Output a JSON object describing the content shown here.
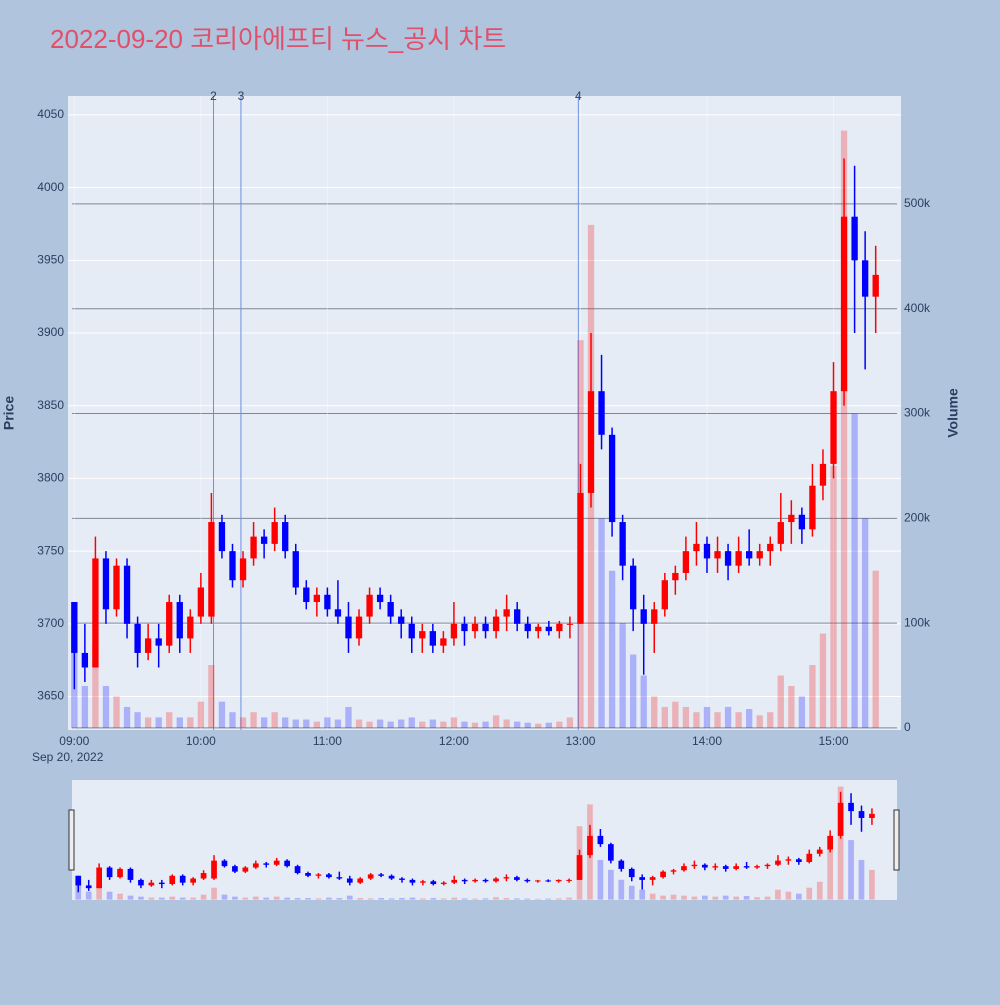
{
  "chart_data": {
    "type": "candlestick",
    "title": "2022-09-20 코리아에프티 뉴스_공시 차트",
    "ylabel": "Price",
    "y2label": "Volume",
    "x_date_label": "Sep 20, 2022",
    "x": [
      "09:00",
      "09:05",
      "09:10",
      "09:15",
      "09:20",
      "09:25",
      "09:30",
      "09:35",
      "09:40",
      "09:45",
      "09:50",
      "09:55",
      "10:00",
      "10:05",
      "10:10",
      "10:15",
      "10:20",
      "10:25",
      "10:30",
      "10:35",
      "10:40",
      "10:45",
      "10:50",
      "10:55",
      "11:00",
      "11:05",
      "11:10",
      "11:15",
      "11:20",
      "11:25",
      "11:30",
      "11:35",
      "11:40",
      "11:45",
      "11:50",
      "11:55",
      "12:00",
      "12:05",
      "12:10",
      "12:15",
      "12:20",
      "12:25",
      "12:30",
      "12:35",
      "12:40",
      "12:45",
      "12:50",
      "12:55",
      "13:00",
      "13:05",
      "13:10",
      "13:15",
      "13:20",
      "13:25",
      "13:30",
      "13:35",
      "13:40",
      "13:45",
      "13:50",
      "13:55",
      "14:00",
      "14:05",
      "14:10",
      "14:15",
      "14:20",
      "14:25",
      "14:30",
      "14:35",
      "14:40",
      "14:45",
      "14:50",
      "14:55",
      "15:00",
      "15:05",
      "15:10",
      "15:15",
      "15:20"
    ],
    "open": [
      3715,
      3680,
      3670,
      3745,
      3710,
      3740,
      3700,
      3680,
      3690,
      3685,
      3715,
      3690,
      3705,
      3705,
      3770,
      3750,
      3730,
      3745,
      3760,
      3755,
      3770,
      3750,
      3725,
      3715,
      3720,
      3710,
      3705,
      3690,
      3705,
      3720,
      3715,
      3705,
      3700,
      3690,
      3695,
      3685,
      3690,
      3700,
      3695,
      3700,
      3695,
      3705,
      3710,
      3700,
      3695,
      3698,
      3695,
      3700,
      3700,
      3790,
      3860,
      3830,
      3770,
      3740,
      3710,
      3700,
      3710,
      3730,
      3735,
      3750,
      3755,
      3745,
      3750,
      3740,
      3750,
      3745,
      3750,
      3755,
      3770,
      3775,
      3765,
      3795,
      3810,
      3860,
      3980,
      3950,
      3925
    ],
    "high": [
      3715,
      3700,
      3760,
      3750,
      3745,
      3745,
      3705,
      3700,
      3700,
      3720,
      3720,
      3710,
      3735,
      3790,
      3775,
      3755,
      3750,
      3770,
      3765,
      3780,
      3775,
      3755,
      3730,
      3725,
      3725,
      3730,
      3715,
      3710,
      3725,
      3725,
      3720,
      3710,
      3705,
      3700,
      3700,
      3695,
      3715,
      3705,
      3705,
      3705,
      3710,
      3720,
      3715,
      3705,
      3700,
      3702,
      3702,
      3705,
      3810,
      3900,
      3885,
      3835,
      3775,
      3745,
      3720,
      3715,
      3735,
      3740,
      3760,
      3770,
      3760,
      3760,
      3755,
      3760,
      3765,
      3755,
      3760,
      3790,
      3785,
      3780,
      3810,
      3820,
      3880,
      4020,
      4015,
      3970,
      3960
    ],
    "low": [
      3655,
      3660,
      3670,
      3700,
      3705,
      3690,
      3670,
      3675,
      3670,
      3680,
      3680,
      3680,
      3700,
      3700,
      3745,
      3725,
      3725,
      3740,
      3745,
      3750,
      3745,
      3720,
      3710,
      3705,
      3705,
      3700,
      3680,
      3685,
      3700,
      3710,
      3700,
      3690,
      3680,
      3680,
      3680,
      3680,
      3685,
      3685,
      3690,
      3690,
      3690,
      3695,
      3695,
      3690,
      3690,
      3692,
      3690,
      3690,
      3700,
      3780,
      3820,
      3760,
      3730,
      3695,
      3665,
      3680,
      3705,
      3720,
      3730,
      3740,
      3735,
      3735,
      3730,
      3735,
      3740,
      3740,
      3740,
      3750,
      3755,
      3755,
      3760,
      3785,
      3800,
      3850,
      3900,
      3875,
      3900
    ],
    "close": [
      3680,
      3670,
      3745,
      3710,
      3740,
      3700,
      3680,
      3690,
      3685,
      3715,
      3690,
      3705,
      3725,
      3770,
      3750,
      3730,
      3745,
      3760,
      3755,
      3770,
      3750,
      3725,
      3715,
      3720,
      3710,
      3705,
      3690,
      3705,
      3720,
      3715,
      3705,
      3700,
      3690,
      3695,
      3685,
      3690,
      3700,
      3695,
      3700,
      3695,
      3705,
      3710,
      3700,
      3695,
      3698,
      3695,
      3700,
      3700,
      3790,
      3860,
      3830,
      3770,
      3740,
      3710,
      3700,
      3710,
      3730,
      3735,
      3750,
      3755,
      3745,
      3750,
      3740,
      3750,
      3745,
      3750,
      3755,
      3770,
      3775,
      3765,
      3795,
      3810,
      3860,
      3980,
      3950,
      3925,
      3940
    ],
    "volume": [
      90000,
      40000,
      80000,
      40000,
      30000,
      20000,
      15000,
      10000,
      10000,
      15000,
      10000,
      10000,
      25000,
      60000,
      25000,
      15000,
      10000,
      15000,
      10000,
      15000,
      10000,
      8000,
      8000,
      6000,
      10000,
      8000,
      20000,
      8000,
      6000,
      8000,
      6000,
      8000,
      10000,
      6000,
      8000,
      6000,
      10000,
      6000,
      5000,
      6000,
      12000,
      8000,
      6000,
      5000,
      4000,
      5000,
      6000,
      10000,
      370000,
      480000,
      200000,
      150000,
      100000,
      70000,
      50000,
      30000,
      20000,
      25000,
      20000,
      15000,
      20000,
      15000,
      20000,
      15000,
      18000,
      12000,
      15000,
      50000,
      40000,
      30000,
      60000,
      90000,
      250000,
      570000,
      300000,
      200000,
      150000
    ],
    "colors": {
      "up": "#ff0000",
      "down": "#0000ff"
    },
    "xlim": [
      "08:57",
      "15:32"
    ],
    "xticks": [
      "09:00",
      "10:00",
      "11:00",
      "12:00",
      "13:00",
      "14:00",
      "15:00"
    ],
    "ylim": [
      3627,
      4063
    ],
    "yticks": [
      3650,
      3700,
      3750,
      3800,
      3850,
      3900,
      3950,
      4000,
      4050
    ],
    "y2lim": [
      -2000,
      603000
    ],
    "y2ticks": [
      {
        "value": 0,
        "label": "0"
      },
      {
        "value": 100000,
        "label": "100k"
      },
      {
        "value": 200000,
        "label": "200k"
      },
      {
        "value": 300000,
        "label": "300k"
      },
      {
        "value": 400000,
        "label": "400k"
      },
      {
        "value": 500000,
        "label": "500k"
      }
    ],
    "annotations": [
      {
        "x": "10:06",
        "text": "2"
      },
      {
        "x": "10:19",
        "text": "3"
      },
      {
        "x": "12:59",
        "text": "4"
      }
    ],
    "grid": true,
    "rangeslider": true
  }
}
